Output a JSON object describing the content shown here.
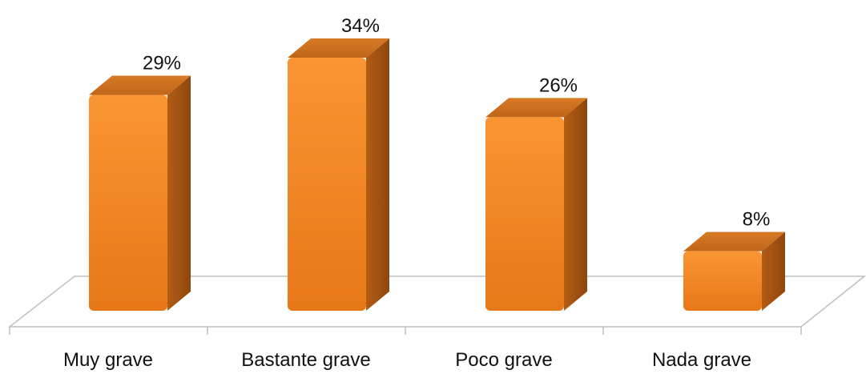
{
  "chart_data": {
    "type": "bar",
    "categories": [
      "Muy grave",
      "Bastante grave",
      "Poco grave",
      "Nada grave"
    ],
    "values": [
      29,
      34,
      26,
      8
    ],
    "value_labels": [
      "29%",
      "34%",
      "26%",
      "8%"
    ],
    "ylim": [
      0,
      35
    ],
    "grid": false,
    "legend": "none",
    "colors": {
      "front": "#f2841f",
      "front_light": "#fb9533",
      "top": "#c2671a",
      "side": "#9a4f10",
      "floor_line": "#bfbfbf"
    }
  }
}
